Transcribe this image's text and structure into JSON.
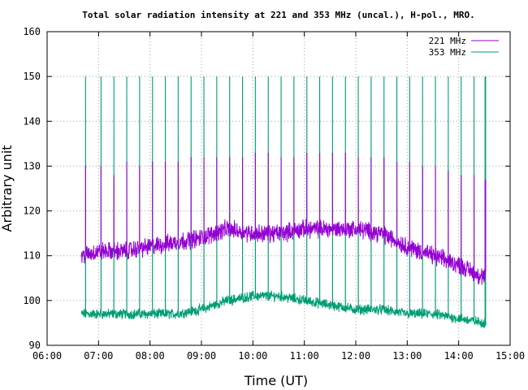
{
  "chart_data": {
    "type": "line",
    "title": "Total solar radiation intensity at 221 and 353 MHz (uncal.), H-pol., MRO.",
    "xlabel": "Time (UT)",
    "ylabel": "Arbitrary unit",
    "xlim": [
      "06:00",
      "15:00"
    ],
    "ylim": [
      90,
      160
    ],
    "x_ticks": [
      "06:00",
      "07:00",
      "08:00",
      "09:00",
      "10:00",
      "11:00",
      "12:00",
      "13:00",
      "14:00",
      "15:00"
    ],
    "y_ticks": [
      90,
      100,
      110,
      120,
      130,
      140,
      150,
      160
    ],
    "grid": true,
    "legend_position": "top-right",
    "time_range": [
      "06:40",
      "14:32"
    ],
    "calibration_spikes": {
      "times": [
        "06:45",
        "07:03",
        "07:18",
        "07:33",
        "07:48",
        "08:03",
        "08:18",
        "08:33",
        "08:48",
        "09:03",
        "09:18",
        "09:33",
        "09:48",
        "10:03",
        "10:18",
        "10:33",
        "10:48",
        "11:03",
        "11:18",
        "11:33",
        "11:48",
        "12:03",
        "12:18",
        "12:33",
        "12:48",
        "13:03",
        "13:18",
        "13:33",
        "13:48",
        "14:03",
        "14:18",
        "14:31"
      ],
      "peak_353": 150,
      "peak_221": [
        130,
        130,
        128,
        131,
        130,
        131,
        131,
        131,
        132,
        132,
        132,
        132,
        132,
        133,
        133,
        132,
        132,
        133,
        133,
        133,
        133,
        132,
        132,
        132,
        131,
        131,
        130,
        130,
        129,
        128,
        128,
        127
      ]
    },
    "series": [
      {
        "name": "221 MHz",
        "color": "#9400d3",
        "x": [
          "06:40",
          "07:00",
          "07:30",
          "08:00",
          "08:30",
          "09:00",
          "09:30",
          "10:00",
          "10:30",
          "11:00",
          "11:30",
          "12:00",
          "12:30",
          "13:00",
          "13:30",
          "14:00",
          "14:30"
        ],
        "values": [
          110,
          111,
          111,
          112,
          113,
          114,
          116,
          115,
          115,
          116,
          116,
          116,
          115,
          112,
          110,
          108,
          105
        ]
      },
      {
        "name": "353 MHz",
        "color": "#009e73",
        "x": [
          "06:40",
          "07:00",
          "07:30",
          "08:00",
          "08:30",
          "09:00",
          "09:30",
          "10:00",
          "10:30",
          "11:00",
          "11:30",
          "12:00",
          "12:30",
          "13:00",
          "13:30",
          "14:00",
          "14:30"
        ],
        "values": [
          97,
          97,
          97,
          97,
          97,
          98,
          100,
          101,
          101,
          100,
          99,
          98,
          98,
          97,
          97,
          96,
          95
        ]
      }
    ]
  }
}
